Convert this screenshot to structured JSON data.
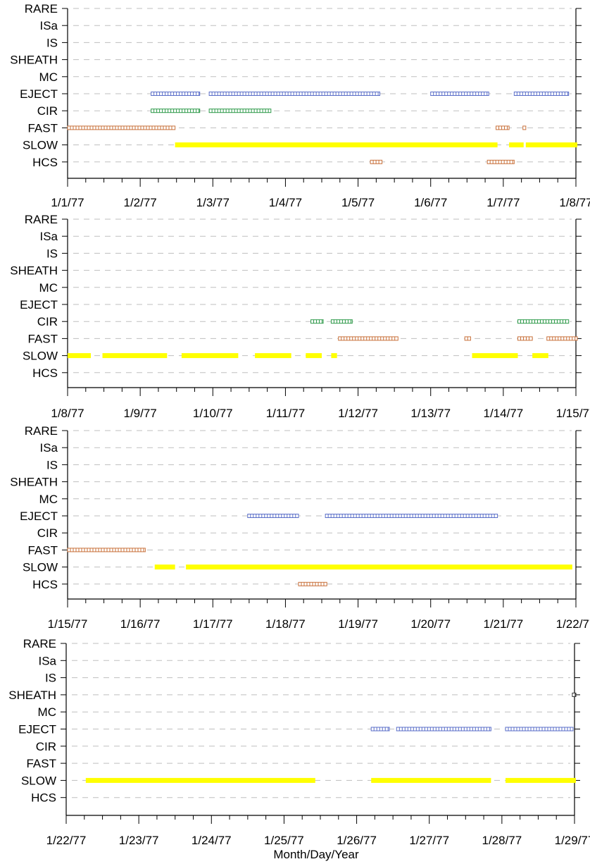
{
  "xlabel": "Month/Day/Year",
  "category_order": [
    "RARE",
    "ISa",
    "IS",
    "SHEATH",
    "MC",
    "EJECT",
    "CIR",
    "FAST",
    "SLOW",
    "HCS"
  ],
  "colors": {
    "EJECT": "#5a6ec8",
    "CIR": "#2e9a4a",
    "FAST": "#c8703a",
    "SLOW": "#ffff00",
    "HCS": "#c8703a",
    "SHEATH": "#303030",
    "grid": "#bfbfbf",
    "axis": "#000000"
  },
  "chart_data": [
    {
      "type": "timeline",
      "xlim": [
        1,
        8
      ],
      "x_tick_labels": [
        "1/1/77",
        "1/2/77",
        "1/3/77",
        "1/4/77",
        "1/5/77",
        "1/6/77",
        "1/7/77",
        "1/8/77"
      ],
      "categories": [
        "RARE",
        "ISa",
        "IS",
        "SHEATH",
        "MC",
        "EJECT",
        "CIR",
        "FAST",
        "SLOW",
        "HCS"
      ],
      "grid": true,
      "series": [
        {
          "category": "EJECT",
          "style": "boxes",
          "intervals": [
            [
              2.15,
              2.82
            ],
            [
              2.95,
              5.3
            ],
            [
              6.0,
              6.8
            ],
            [
              7.15,
              7.9
            ]
          ]
        },
        {
          "category": "CIR",
          "style": "boxes",
          "intervals": [
            [
              2.15,
              2.82
            ],
            [
              2.95,
              3.8
            ]
          ]
        },
        {
          "category": "FAST",
          "style": "boxes",
          "intervals": [
            [
              1.0,
              2.48
            ],
            [
              6.9,
              7.08
            ],
            [
              7.27,
              7.31
            ]
          ]
        },
        {
          "category": "SLOW",
          "style": "bar",
          "intervals": [
            [
              2.48,
              6.92
            ],
            [
              7.08,
              7.28
            ],
            [
              7.31,
              8.15
            ]
          ]
        },
        {
          "category": "HCS",
          "style": "boxes",
          "intervals": [
            [
              5.17,
              5.33
            ],
            [
              6.78,
              7.15
            ]
          ]
        }
      ]
    },
    {
      "type": "timeline",
      "xlim": [
        8,
        15
      ],
      "x_tick_labels": [
        "1/8/77",
        "1/9/77",
        "1/10/77",
        "1/11/77",
        "1/12/77",
        "1/13/77",
        "1/14/77",
        "1/15/77"
      ],
      "categories": [
        "RARE",
        "ISa",
        "IS",
        "SHEATH",
        "MC",
        "EJECT",
        "CIR",
        "FAST",
        "SLOW",
        "HCS"
      ],
      "grid": true,
      "series": [
        {
          "category": "CIR",
          "style": "boxes",
          "intervals": [
            [
              11.35,
              11.52
            ],
            [
              11.63,
              11.92
            ],
            [
              14.2,
              14.9
            ]
          ]
        },
        {
          "category": "FAST",
          "style": "boxes",
          "intervals": [
            [
              11.73,
              12.55
            ],
            [
              13.47,
              13.55
            ],
            [
              14.2,
              14.4
            ],
            [
              14.6,
              15.15
            ]
          ]
        },
        {
          "category": "SLOW",
          "style": "bar",
          "intervals": [
            [
              8.0,
              8.32
            ],
            [
              8.48,
              9.37
            ],
            [
              9.57,
              10.35
            ],
            [
              10.58,
              11.08
            ],
            [
              11.28,
              11.5
            ],
            [
              11.63,
              11.71
            ],
            [
              13.57,
              14.2
            ],
            [
              14.4,
              14.62
            ]
          ]
        }
      ]
    },
    {
      "type": "timeline",
      "xlim": [
        15,
        22
      ],
      "x_tick_labels": [
        "1/15/77",
        "1/16/77",
        "1/17/77",
        "1/18/77",
        "1/19/77",
        "1/20/77",
        "1/21/77",
        "1/22/77"
      ],
      "categories": [
        "RARE",
        "ISa",
        "IS",
        "SHEATH",
        "MC",
        "EJECT",
        "CIR",
        "FAST",
        "SLOW",
        "HCS"
      ],
      "grid": true,
      "series": [
        {
          "category": "EJECT",
          "style": "boxes",
          "intervals": [
            [
              17.48,
              18.18
            ],
            [
              18.55,
              20.92
            ]
          ]
        },
        {
          "category": "FAST",
          "style": "boxes",
          "intervals": [
            [
              15.0,
              16.07
            ]
          ]
        },
        {
          "category": "SLOW",
          "style": "bar",
          "intervals": [
            [
              16.2,
              16.48
            ],
            [
              16.63,
              21.95
            ]
          ]
        },
        {
          "category": "HCS",
          "style": "boxes",
          "intervals": [
            [
              18.18,
              18.57
            ]
          ]
        }
      ]
    },
    {
      "type": "timeline",
      "xlim": [
        22,
        29
      ],
      "x_tick_labels": [
        "1/22/77",
        "1/23/77",
        "1/24/77",
        "1/25/77",
        "1/26/77",
        "1/27/77",
        "1/28/77",
        "1/29/77"
      ],
      "categories": [
        "RARE",
        "ISa",
        "IS",
        "SHEATH",
        "MC",
        "EJECT",
        "CIR",
        "FAST",
        "SLOW",
        "HCS"
      ],
      "grid": true,
      "series": [
        {
          "category": "SHEATH",
          "style": "boxes",
          "intervals": [
            [
              28.97,
              29.15
            ]
          ]
        },
        {
          "category": "EJECT",
          "style": "boxes",
          "intervals": [
            [
              26.2,
              26.45
            ],
            [
              26.55,
              27.85
            ],
            [
              28.05,
              28.98
            ]
          ]
        },
        {
          "category": "SLOW",
          "style": "bar",
          "intervals": [
            [
              22.27,
              25.43
            ],
            [
              26.2,
              27.85
            ],
            [
              28.05,
              29.15
            ]
          ]
        }
      ]
    }
  ]
}
